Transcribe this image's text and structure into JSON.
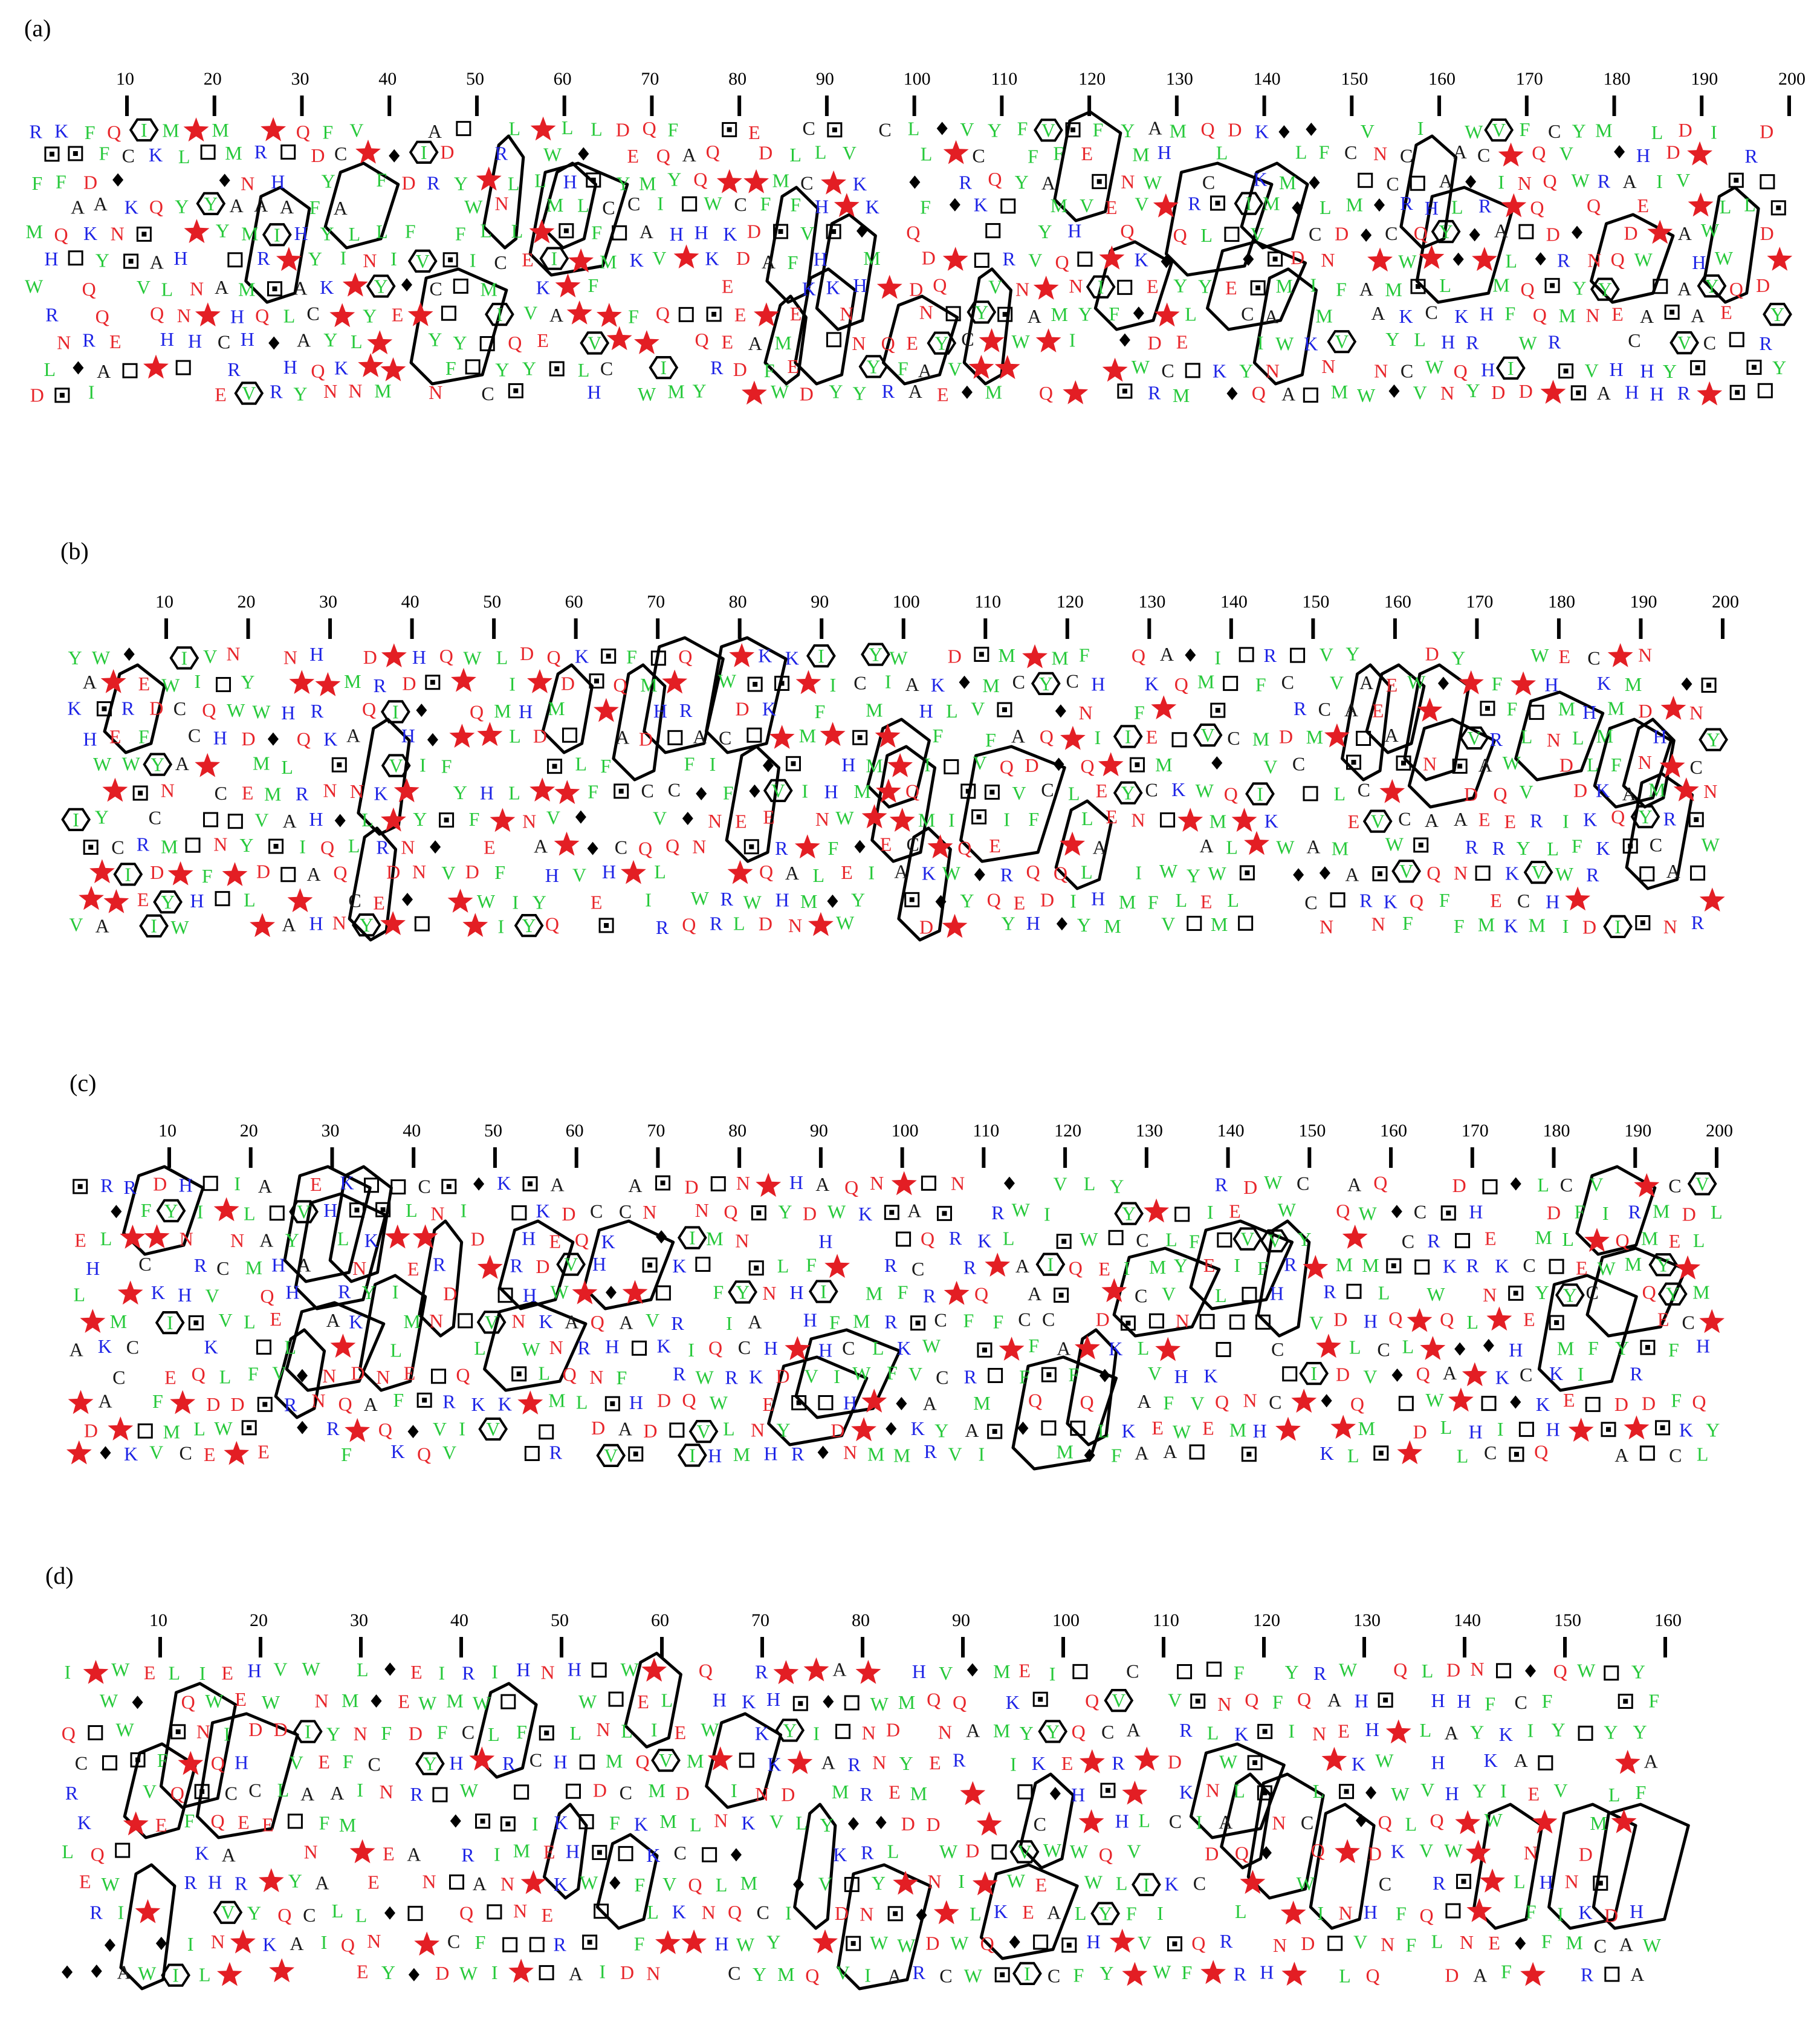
{
  "colors": {
    "polar_acidic": "#e8262b",
    "basic": "#1e24e6",
    "hydrophobic": "#27c93b",
    "neutral": "#1a1a1a",
    "proline_star": "#e31e24",
    "glycine_diamond": "#000000"
  },
  "panels": [
    {
      "label": "(a)",
      "ticks": [
        "10",
        "20",
        "30",
        "40",
        "50",
        "60",
        "70",
        "80",
        "90",
        "100",
        "110",
        "120",
        "130",
        "140",
        "150",
        "160",
        "170",
        "180",
        "190",
        "200"
      ]
    },
    {
      "label": "(b)",
      "ticks": [
        "10",
        "20",
        "30",
        "40",
        "50",
        "60",
        "70",
        "80",
        "90",
        "100",
        "110",
        "120",
        "130",
        "140",
        "150",
        "160",
        "170",
        "180",
        "190",
        "200"
      ]
    },
    {
      "label": "(c)",
      "ticks": [
        "10",
        "20",
        "30",
        "40",
        "50",
        "60",
        "70",
        "80",
        "90",
        "100",
        "110",
        "120",
        "130",
        "140",
        "150",
        "160",
        "170",
        "180",
        "190",
        "200"
      ]
    },
    {
      "label": "(d)",
      "ticks": [
        "10",
        "20",
        "30",
        "40",
        "50",
        "60",
        "70",
        "80",
        "90",
        "100",
        "110",
        "120",
        "130",
        "140",
        "150",
        "160"
      ]
    }
  ],
  "residues": "QEDNRKHAVILFMWYC"
}
